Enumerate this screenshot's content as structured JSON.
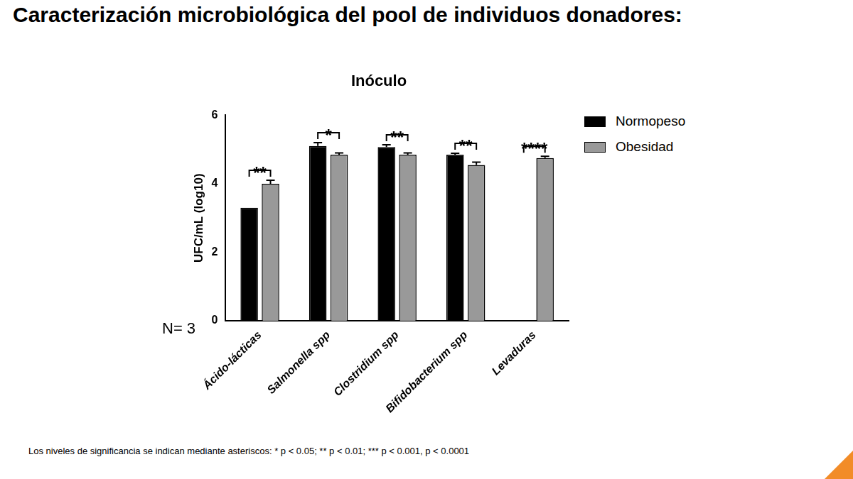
{
  "slide_title": "Caracterización microbiológica del pool de individuos donadores:",
  "annotation": "N= 3",
  "footnote": "Los niveles de significancia se indican mediante asteriscos: * p < 0.05; ** p < 0.01; *** p < 0.001, p < 0.0001",
  "chart_data": {
    "type": "bar",
    "title": "Inóculo",
    "y_label": "UFC/mL (log10)",
    "categories": [
      "Ácido-lácticas",
      "Salmonella spp",
      "Clostridium spp",
      "Bifidobacterium spp",
      "Levaduras"
    ],
    "series": [
      {
        "name": "Normopeso",
        "color": "#000000",
        "values": [
          3.3,
          5.1,
          5.07,
          4.85,
          0
        ],
        "errors": [
          0,
          0.1,
          0.07,
          0.04,
          0
        ]
      },
      {
        "name": "Obesidad",
        "color": "#999999",
        "values": [
          4.0,
          4.85,
          4.85,
          4.55,
          4.75
        ],
        "errors": [
          0.1,
          0.05,
          0.05,
          0.08,
          0.05
        ]
      }
    ],
    "significance": [
      "**",
      "*",
      "**",
      "**",
      "****"
    ],
    "ylim": [
      0,
      6
    ],
    "yticks": [
      0,
      2,
      4,
      6
    ],
    "grid": false,
    "legend": "right"
  }
}
